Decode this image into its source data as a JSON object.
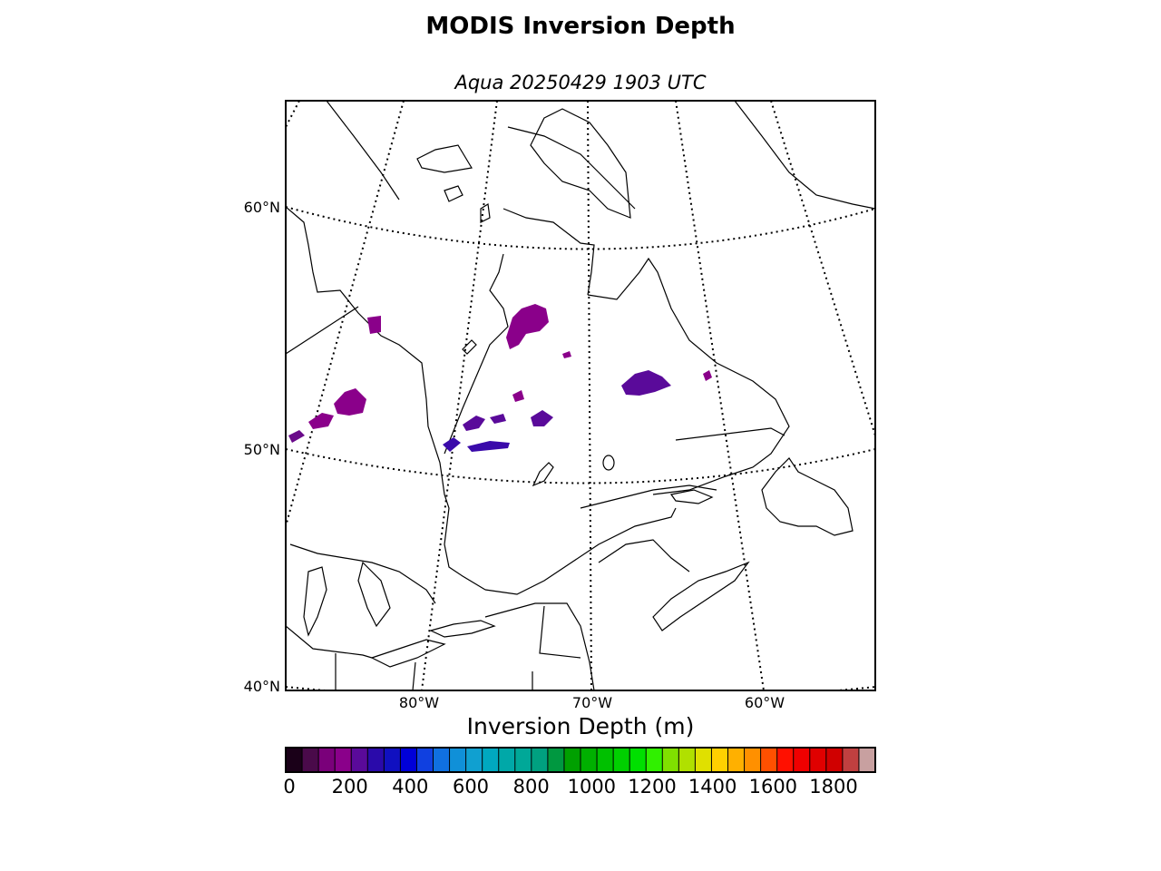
{
  "title": "MODIS Inversion Depth",
  "subtitle": "Aqua 20250429 1903 UTC",
  "map": {
    "lat_labels": [
      "60°N",
      "50°N",
      "40°N"
    ],
    "lon_labels": [
      "80°W",
      "70°W",
      "60°W"
    ],
    "coastline_color": "#000000",
    "graticule_style": "dotted"
  },
  "colorbar": {
    "label": "Inversion Depth (m)",
    "ticks": [
      "0",
      "200",
      "400",
      "600",
      "800",
      "1000",
      "1200",
      "1400",
      "1600",
      "1800"
    ],
    "colors": [
      "#1a0018",
      "#4a0a4a",
      "#7a007a",
      "#8a008a",
      "#5a0a9a",
      "#2a0aaa",
      "#1010c0",
      "#0000d8",
      "#1040e0",
      "#1070e0",
      "#1090d8",
      "#10a0d0",
      "#00a8c0",
      "#00a8a8",
      "#00a898",
      "#00a080",
      "#009840",
      "#00a000",
      "#00b000",
      "#00c000",
      "#00d000",
      "#00e000",
      "#30f000",
      "#80e000",
      "#b0e000",
      "#e0e000",
      "#ffd000",
      "#ffb000",
      "#ff9000",
      "#ff5000",
      "#ff1000",
      "#f00000",
      "#e00000",
      "#d00000",
      "#c04040",
      "#c8a0a0"
    ]
  },
  "chart_data": {
    "type": "heatmap",
    "title": "MODIS Inversion Depth",
    "subtitle": "Aqua 20250429 1903 UTC",
    "colorbar_label": "Inversion Depth (m)",
    "value_range": [
      0,
      1950
    ],
    "colorbar_ticks": [
      0,
      200,
      400,
      600,
      800,
      1000,
      1200,
      1400,
      1600,
      1800
    ],
    "region": "Eastern Canada / Quebec-Labrador",
    "lat_gridlines": [
      40,
      50,
      60
    ],
    "lon_gridlines": [
      -80,
      -70,
      -60
    ],
    "observed_range_m": [
      100,
      300
    ]
  }
}
